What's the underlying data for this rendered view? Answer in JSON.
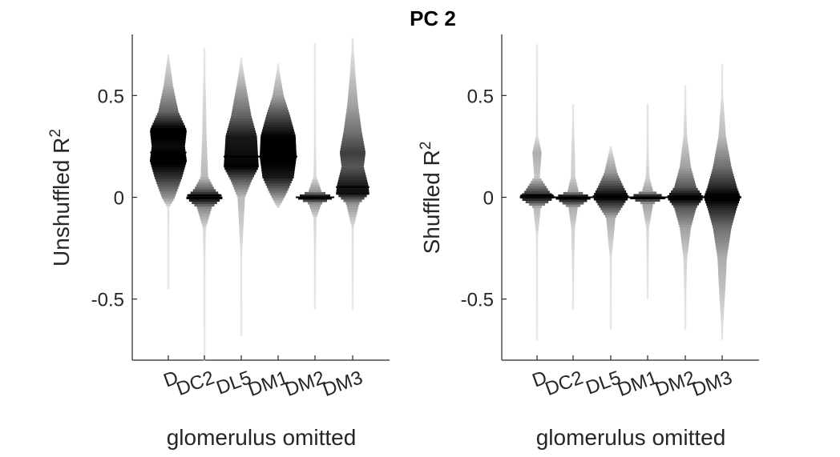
{
  "title": "PC 2",
  "chart_data": [
    {
      "type": "violin",
      "title": "",
      "xlabel": "glomerulus omitted",
      "ylabel": "Unshuffled R",
      "ylabel_sup": "2",
      "categories": [
        "D",
        "DC2",
        "DL5",
        "DM1",
        "DM2",
        "DM3"
      ],
      "ylim": [
        -0.8,
        0.8
      ],
      "yticks": [
        -0.5,
        0,
        0.5
      ],
      "ytick_labels": [
        "-0.5",
        "0",
        "0.5"
      ],
      "violins": [
        {
          "category": "D",
          "min": -0.45,
          "max": 0.7,
          "q1": 0.15,
          "median": 0.22,
          "q3": 0.33,
          "density": [
            [
              -0.45,
              0.02
            ],
            [
              -0.2,
              0.02
            ],
            [
              -0.05,
              0.05
            ],
            [
              0.0,
              0.35
            ],
            [
              0.1,
              0.75
            ],
            [
              0.18,
              1.0
            ],
            [
              0.25,
              0.9
            ],
            [
              0.33,
              1.0
            ],
            [
              0.42,
              0.55
            ],
            [
              0.55,
              0.25
            ],
            [
              0.7,
              0.03
            ]
          ]
        },
        {
          "category": "DC2",
          "min": -0.8,
          "max": 0.73,
          "q1": 0.0,
          "median": 0.01,
          "q3": 0.05,
          "density": [
            [
              -0.8,
              0.01
            ],
            [
              -0.4,
              0.03
            ],
            [
              -0.15,
              0.08
            ],
            [
              -0.05,
              0.4
            ],
            [
              0.0,
              1.0
            ],
            [
              0.04,
              0.55
            ],
            [
              0.1,
              0.2
            ],
            [
              0.3,
              0.12
            ],
            [
              0.5,
              0.08
            ],
            [
              0.73,
              0.01
            ]
          ]
        },
        {
          "category": "DL5",
          "min": -0.68,
          "max": 0.68,
          "q1": 0.15,
          "median": 0.2,
          "q3": 0.3,
          "density": [
            [
              -0.68,
              0.01
            ],
            [
              -0.3,
              0.03
            ],
            [
              0.0,
              0.2
            ],
            [
              0.08,
              0.55
            ],
            [
              0.15,
              0.95
            ],
            [
              0.22,
              0.9
            ],
            [
              0.3,
              0.85
            ],
            [
              0.4,
              0.55
            ],
            [
              0.55,
              0.25
            ],
            [
              0.68,
              0.02
            ]
          ]
        },
        {
          "category": "DM1",
          "min": -0.05,
          "max": 0.65,
          "q1": 0.13,
          "median": 0.2,
          "q3": 0.3,
          "density": [
            [
              -0.05,
              0.05
            ],
            [
              0.02,
              0.45
            ],
            [
              0.1,
              0.85
            ],
            [
              0.2,
              1.0
            ],
            [
              0.3,
              0.95
            ],
            [
              0.4,
              0.65
            ],
            [
              0.5,
              0.3
            ],
            [
              0.65,
              0.02
            ]
          ]
        },
        {
          "category": "DM2",
          "min": -0.55,
          "max": 0.75,
          "q1": -0.01,
          "median": 0.0,
          "q3": 0.01,
          "density": [
            [
              -0.55,
              0.01
            ],
            [
              -0.28,
              0.05
            ],
            [
              -0.1,
              0.08
            ],
            [
              -0.03,
              0.35
            ],
            [
              0.0,
              1.0
            ],
            [
              0.03,
              0.35
            ],
            [
              0.1,
              0.08
            ],
            [
              0.4,
              0.02
            ],
            [
              0.75,
              0.01
            ]
          ]
        },
        {
          "category": "DM3",
          "min": -0.55,
          "max": 0.78,
          "q1": 0.02,
          "median": 0.05,
          "q3": 0.2,
          "density": [
            [
              -0.55,
              0.01
            ],
            [
              -0.15,
              0.05
            ],
            [
              -0.03,
              0.35
            ],
            [
              0.02,
              0.9
            ],
            [
              0.06,
              0.85
            ],
            [
              0.15,
              0.6
            ],
            [
              0.22,
              0.7
            ],
            [
              0.32,
              0.5
            ],
            [
              0.45,
              0.3
            ],
            [
              0.6,
              0.15
            ],
            [
              0.78,
              0.02
            ]
          ]
        }
      ]
    },
    {
      "type": "violin",
      "title": "",
      "xlabel": "glomerulus omitted",
      "ylabel": "Shuffled R",
      "ylabel_sup": "2",
      "categories": [
        "D",
        "DC2",
        "DL5",
        "DM1",
        "DM2",
        "DM3"
      ],
      "ylim": [
        -0.8,
        0.8
      ],
      "yticks": [
        -0.5,
        0,
        0.5
      ],
      "ytick_labels": [
        "-0.5",
        "0",
        "0.5"
      ],
      "violins": [
        {
          "category": "D",
          "min": -0.7,
          "max": 0.75,
          "q1": -0.01,
          "median": 0.01,
          "q3": 0.03,
          "density": [
            [
              -0.7,
              0.01
            ],
            [
              -0.2,
              0.04
            ],
            [
              -0.05,
              0.2
            ],
            [
              0.0,
              0.95
            ],
            [
              0.03,
              0.65
            ],
            [
              0.1,
              0.15
            ],
            [
              0.22,
              0.25
            ],
            [
              0.3,
              0.06
            ],
            [
              0.4,
              0.04
            ],
            [
              0.75,
              0.01
            ]
          ]
        },
        {
          "category": "DC2",
          "min": -0.55,
          "max": 0.45,
          "q1": -0.01,
          "median": 0.0,
          "q3": 0.01,
          "density": [
            [
              -0.55,
              0.01
            ],
            [
              -0.15,
              0.1
            ],
            [
              -0.05,
              0.25
            ],
            [
              0.0,
              1.0
            ],
            [
              0.03,
              0.3
            ],
            [
              0.1,
              0.12
            ],
            [
              0.2,
              0.1
            ],
            [
              0.45,
              0.02
            ]
          ]
        },
        {
          "category": "DL5",
          "min": -0.65,
          "max": 0.25,
          "q1": -0.02,
          "median": 0.0,
          "q3": 0.02,
          "density": [
            [
              -0.65,
              0.01
            ],
            [
              -0.3,
              0.05
            ],
            [
              -0.1,
              0.25
            ],
            [
              -0.02,
              0.8
            ],
            [
              0.0,
              1.0
            ],
            [
              0.05,
              0.7
            ],
            [
              0.12,
              0.35
            ],
            [
              0.25,
              0.03
            ]
          ]
        },
        {
          "category": "DM1",
          "min": -0.5,
          "max": 0.45,
          "q1": -0.01,
          "median": 0.0,
          "q3": 0.01,
          "density": [
            [
              -0.5,
              0.01
            ],
            [
              -0.15,
              0.08
            ],
            [
              -0.03,
              0.3
            ],
            [
              0.0,
              1.0
            ],
            [
              0.03,
              0.3
            ],
            [
              0.1,
              0.1
            ],
            [
              0.2,
              0.06
            ],
            [
              0.45,
              0.02
            ]
          ]
        },
        {
          "category": "DM2",
          "min": -0.65,
          "max": 0.55,
          "q1": -0.02,
          "median": 0.0,
          "q3": 0.02,
          "density": [
            [
              -0.65,
              0.01
            ],
            [
              -0.3,
              0.1
            ],
            [
              -0.15,
              0.3
            ],
            [
              -0.05,
              0.6
            ],
            [
              0.0,
              1.0
            ],
            [
              0.05,
              0.6
            ],
            [
              0.15,
              0.3
            ],
            [
              0.3,
              0.1
            ],
            [
              0.55,
              0.01
            ]
          ]
        },
        {
          "category": "DM3",
          "min": -0.7,
          "max": 0.65,
          "q1": -0.05,
          "median": 0.0,
          "q3": 0.05,
          "density": [
            [
              -0.7,
              0.01
            ],
            [
              -0.4,
              0.2
            ],
            [
              -0.3,
              0.25
            ],
            [
              -0.15,
              0.5
            ],
            [
              -0.05,
              0.8
            ],
            [
              0.0,
              1.0
            ],
            [
              0.05,
              0.8
            ],
            [
              0.15,
              0.5
            ],
            [
              0.3,
              0.2
            ],
            [
              0.5,
              0.05
            ],
            [
              0.65,
              0.01
            ]
          ]
        }
      ]
    }
  ]
}
